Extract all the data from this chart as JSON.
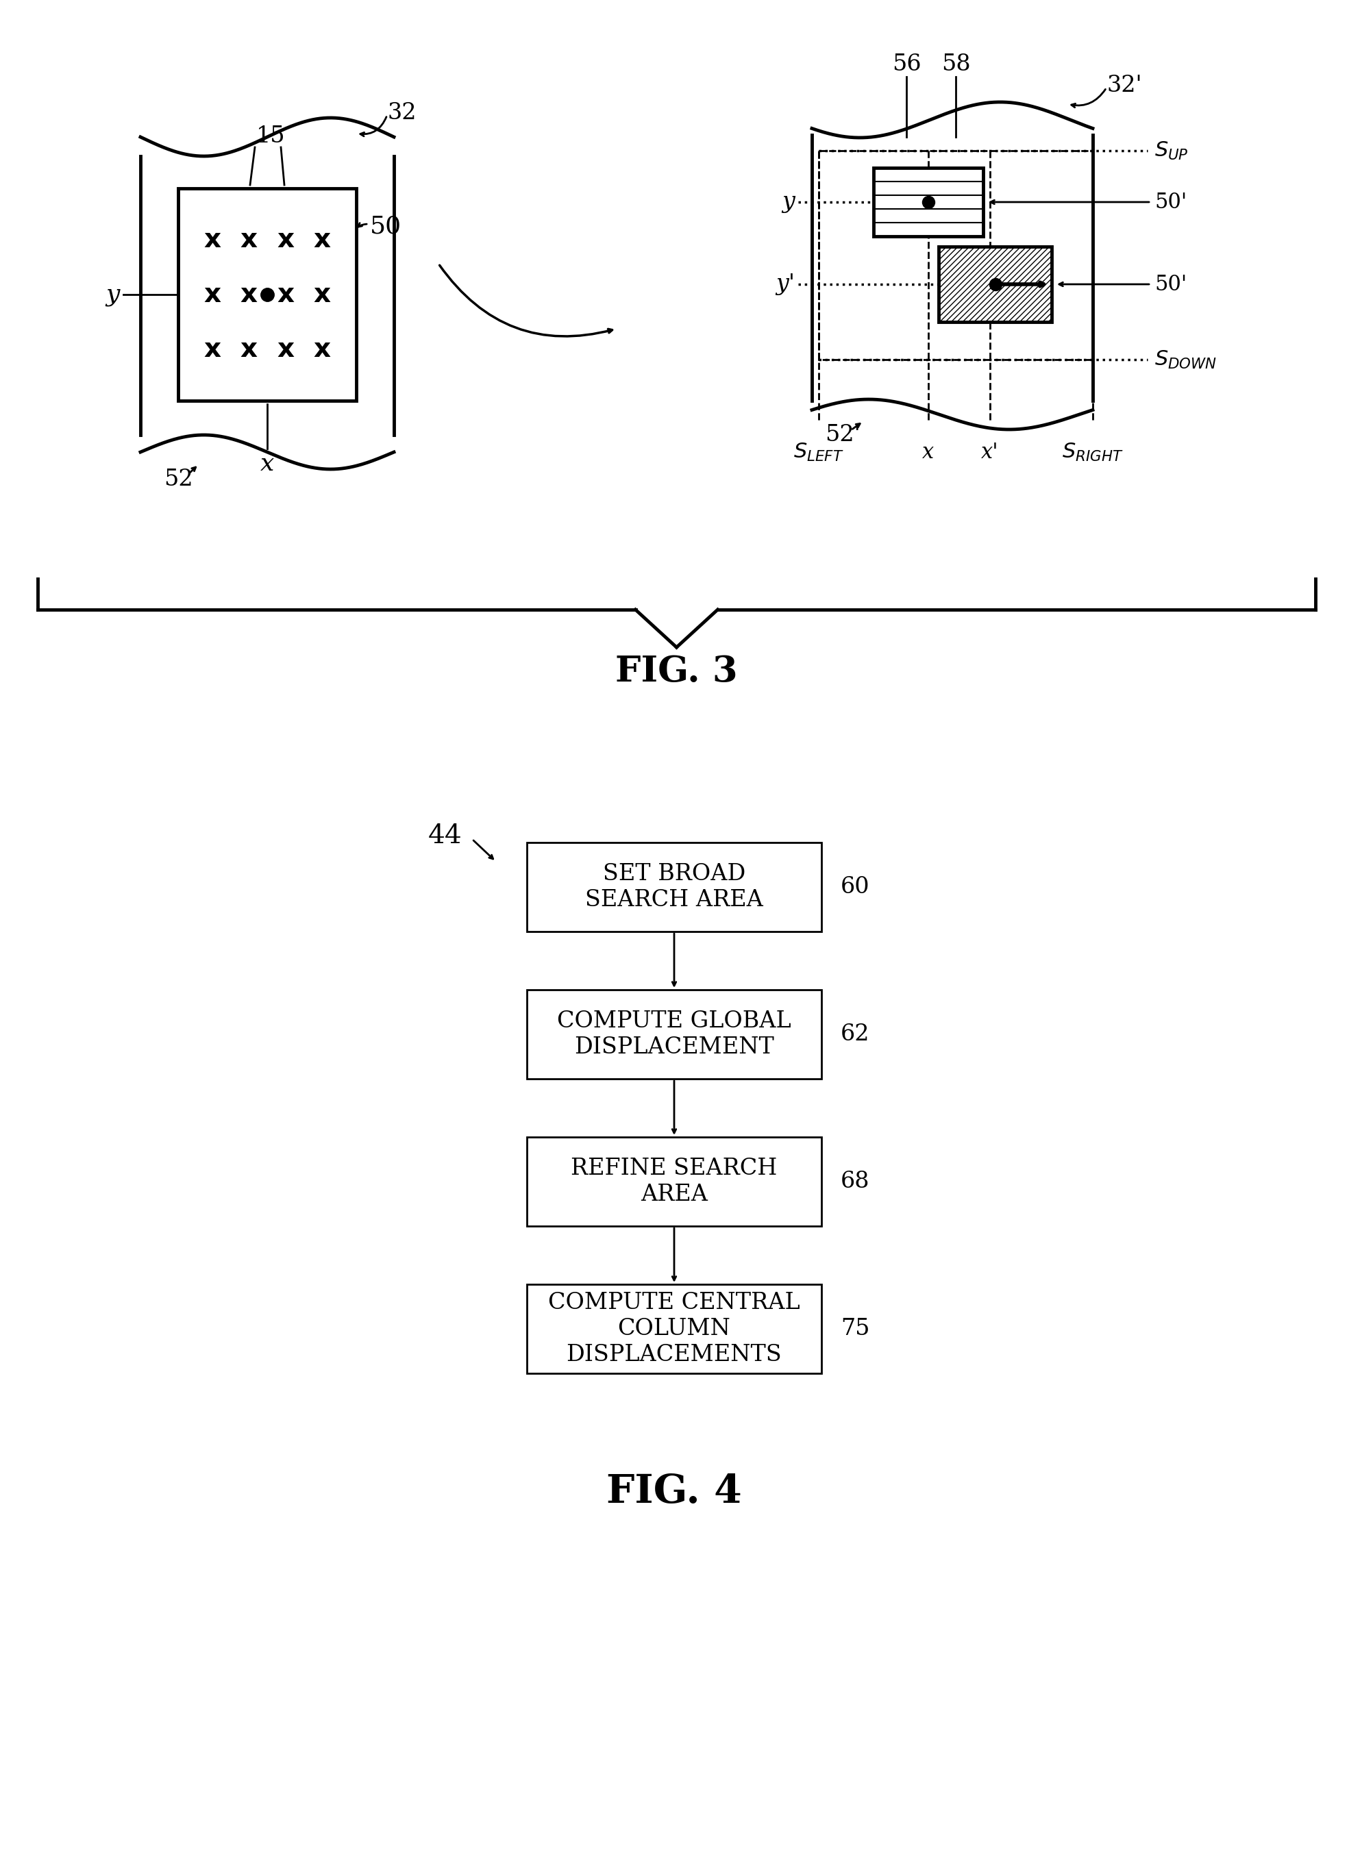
{
  "bg_color": "#ffffff",
  "fig_width": 19.69,
  "fig_height": 27.33,
  "fig3_label": "FIG. 3",
  "fig4_label": "FIG. 4",
  "flowchart_boxes": [
    {
      "label": "SET BROAD\nSEARCH AREA",
      "tag": "60"
    },
    {
      "label": "COMPUTE GLOBAL\nDISPLACEMENT",
      "tag": "62"
    },
    {
      "label": "REFINE SEARCH\nAREA",
      "tag": "68"
    },
    {
      "label": "COMPUTE CENTRAL\nCOLUMN\nDISPLACEMENTS",
      "tag": "75"
    }
  ],
  "flowchart_tag": "44",
  "lw_thick": 3.5,
  "lw_thin": 2.0,
  "lw_medium": 2.5
}
